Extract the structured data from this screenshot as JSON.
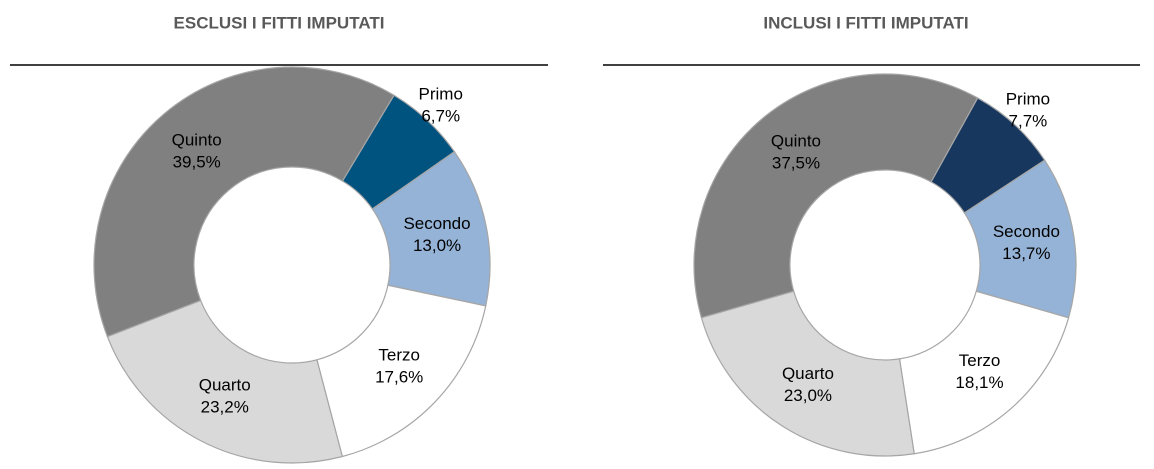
{
  "chart_data": [
    {
      "type": "pie",
      "donut": true,
      "title": "ESCLUSI I FITTI IMPUTATI",
      "categories": [
        "Primo",
        "Secondo",
        "Terzo",
        "Quarto",
        "Quinto"
      ],
      "values": [
        6.7,
        13.0,
        17.6,
        23.2,
        39.5
      ],
      "value_labels": [
        "6,7%",
        "13,0%",
        "17,6%",
        "23,2%",
        "39,5%"
      ],
      "colors": [
        "#00527f",
        "#95b3d7",
        "#ffffff",
        "#d9d9d9",
        "#808080"
      ]
    },
    {
      "type": "pie",
      "donut": true,
      "title": "INCLUSI I FITTI IMPUTATI",
      "categories": [
        "Primo",
        "Secondo",
        "Terzo",
        "Quarto",
        "Quinto"
      ],
      "values": [
        7.7,
        13.7,
        18.1,
        23.0,
        37.5
      ],
      "value_labels": [
        "7,7%",
        "13,7%",
        "18,1%",
        "23,0%",
        "37,5%"
      ],
      "colors": [
        "#17375e",
        "#95b3d7",
        "#ffffff",
        "#d9d9d9",
        "#808080"
      ]
    }
  ]
}
